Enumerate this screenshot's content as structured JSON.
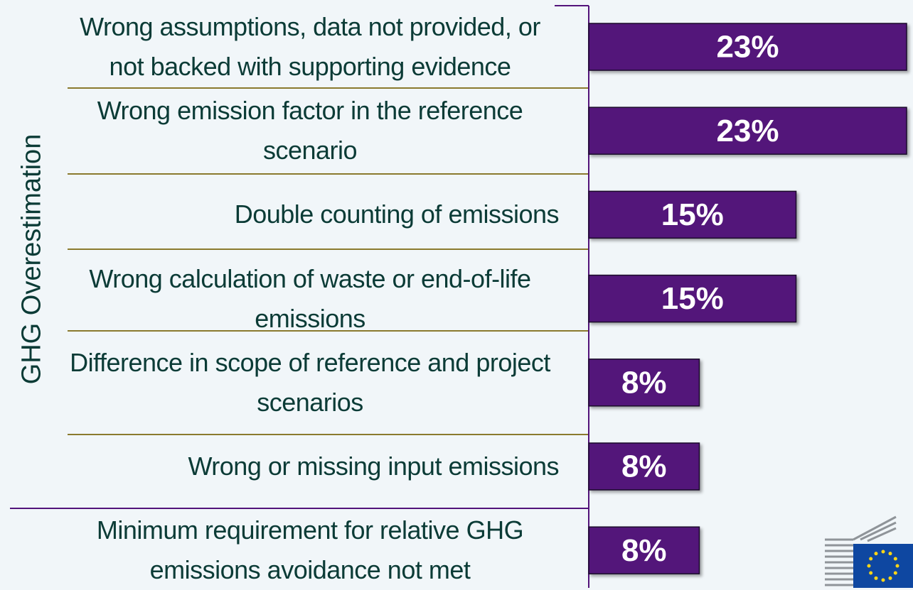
{
  "chart_data": {
    "type": "bar",
    "orientation": "horizontal",
    "y_label": "GHG Overestimation",
    "categories": [
      "Wrong assumptions, data not provided, or not backed with supporting evidence",
      "Wrong emission factor in the reference scenario",
      "Double counting of emissions",
      "Wrong calculation of waste or end-of-life emissions",
      "Difference in scope of reference and project scenarios",
      "Wrong or missing input emissions",
      "Minimum requirement for relative GHG emissions avoidance not met"
    ],
    "values": [
      23,
      23,
      15,
      15,
      8,
      8,
      8
    ],
    "value_labels": [
      "23%",
      "23%",
      "15%",
      "15%",
      "8%",
      "8%",
      "8%"
    ],
    "color": "#52137a",
    "xlim": [
      0,
      23
    ]
  }
}
